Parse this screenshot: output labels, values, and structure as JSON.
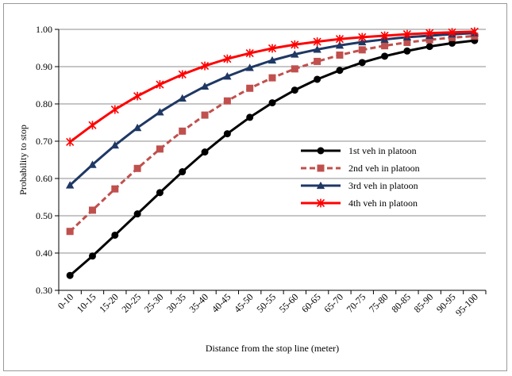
{
  "chart_data": {
    "type": "line",
    "title": "",
    "xlabel": "Distance from the stop line (meter)",
    "ylabel": "Probability to stop",
    "ylim": [
      0.3,
      1.0
    ],
    "yticks": [
      "0.30",
      "0.40",
      "0.50",
      "0.60",
      "0.70",
      "0.80",
      "0.90",
      "1.00"
    ],
    "grid": "horizontal",
    "legend_position": "right",
    "categories": [
      "0-10",
      "10-15",
      "15-20",
      "20-25",
      "25-30",
      "30-35",
      "35-40",
      "40-45",
      "45-50",
      "50-55",
      "55-60",
      "60-65",
      "65-70",
      "70-75",
      "75-80",
      "80-85",
      "85-90",
      "90-95",
      "95-100"
    ],
    "series": [
      {
        "name": "1st veh in platoon",
        "color": "#000000",
        "marker": "circle",
        "dash": "solid",
        "values": [
          0.34,
          0.392,
          0.448,
          0.505,
          0.562,
          0.618,
          0.671,
          0.72,
          0.764,
          0.803,
          0.837,
          0.866,
          0.89,
          0.911,
          0.928,
          0.942,
          0.954,
          0.963,
          0.97
        ]
      },
      {
        "name": "2nd veh in platoon",
        "color": "#c0504d",
        "marker": "square",
        "dash": "dashed",
        "values": [
          0.458,
          0.515,
          0.572,
          0.627,
          0.679,
          0.727,
          0.77,
          0.808,
          0.842,
          0.87,
          0.894,
          0.914,
          0.931,
          0.945,
          0.956,
          0.965,
          0.972,
          0.978,
          0.982
        ]
      },
      {
        "name": "3rd veh in platoon",
        "color": "#1f3864",
        "marker": "triangle",
        "dash": "solid",
        "values": [
          0.582,
          0.637,
          0.689,
          0.736,
          0.778,
          0.815,
          0.847,
          0.874,
          0.897,
          0.917,
          0.933,
          0.946,
          0.957,
          0.966,
          0.973,
          0.979,
          0.983,
          0.987,
          0.99
        ]
      },
      {
        "name": "4th veh in platoon",
        "color": "#ff0000",
        "marker": "star",
        "dash": "solid",
        "values": [
          0.698,
          0.743,
          0.785,
          0.821,
          0.852,
          0.879,
          0.902,
          0.921,
          0.936,
          0.949,
          0.959,
          0.967,
          0.974,
          0.979,
          0.983,
          0.987,
          0.99,
          0.992,
          0.994
        ]
      }
    ]
  }
}
